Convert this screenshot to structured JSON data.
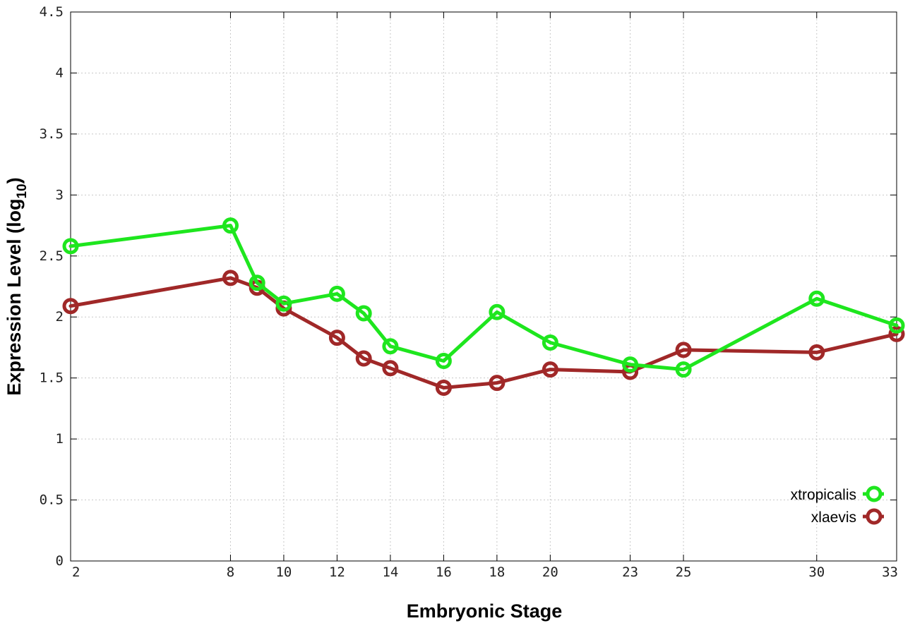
{
  "chart_data": {
    "type": "line",
    "xlabel": "Embryonic Stage",
    "ylabel_main": "Expression Level (log",
    "ylabel_sub": "10",
    "ylabel_close": ")",
    "xlim": [
      2,
      33
    ],
    "ylim": [
      0,
      4.5
    ],
    "x_ticks": [
      2,
      8,
      10,
      12,
      14,
      16,
      18,
      20,
      23,
      25,
      30,
      33
    ],
    "y_ticks": [
      0,
      0.5,
      1,
      1.5,
      2,
      2.5,
      3,
      3.5,
      4,
      4.5
    ],
    "y_tick_labels": [
      "0",
      "0.5",
      "1",
      "1.5",
      "2",
      "2.5",
      "3",
      "3.5",
      "4",
      "4.5"
    ],
    "grid": true,
    "legend_position": "bottom-right",
    "series": [
      {
        "name": "xtropicalis",
        "color": "#1ee61e",
        "x": [
          2,
          8,
          9,
          10,
          12,
          13,
          14,
          16,
          18,
          20,
          23,
          25,
          30,
          33
        ],
        "values": [
          2.58,
          2.75,
          2.28,
          2.11,
          2.19,
          2.03,
          1.76,
          1.64,
          2.04,
          1.79,
          1.61,
          1.57,
          2.15,
          1.93
        ]
      },
      {
        "name": "xlaevis",
        "color": "#a02828",
        "x": [
          2,
          8,
          9,
          10,
          12,
          13,
          14,
          16,
          18,
          20,
          23,
          25,
          30,
          33
        ],
        "values": [
          2.09,
          2.32,
          2.24,
          2.07,
          1.83,
          1.66,
          1.58,
          1.42,
          1.46,
          1.57,
          1.55,
          1.73,
          1.71,
          1.86
        ]
      }
    ]
  }
}
